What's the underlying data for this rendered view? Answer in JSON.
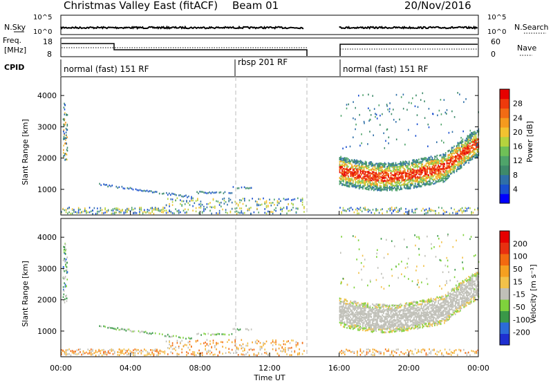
{
  "header": {
    "station": "Christmas Valley East (fitACF)",
    "beam": "Beam 01",
    "date": "20/Nov/2016"
  },
  "left_labels": {
    "nsky": "N.Sky",
    "freq": "Freq.",
    "mhz": "[MHz]",
    "cpid": "CPID"
  },
  "right_labels": {
    "nsearch": "N.Search",
    "nave": "Nave"
  },
  "cpid_modes": [
    {
      "label": "normal (fast) 151 RF",
      "start_hour": 0
    },
    {
      "label": "rbsp 201 RF",
      "start_hour": 10
    },
    {
      "label": "normal (fast) 151 RF",
      "start_hour": 16
    }
  ],
  "noise_ticks": {
    "top": "10^5",
    "bottom": "10^0"
  },
  "freq_ticks": [
    "18",
    "8"
  ],
  "nave_ticks": [
    "60",
    "0"
  ],
  "time_ticks": [
    "00:00",
    "04:00",
    "08:00",
    "12:00",
    "16:00",
    "20:00",
    "00:00"
  ],
  "xlabel": "Time UT",
  "chart_data": [
    {
      "type": "heatmap",
      "name": "power",
      "ylabel": "Slant Range [km]",
      "yticks": [
        "1000",
        "2000",
        "3000",
        "4000"
      ],
      "ylim": [
        180,
        4600
      ],
      "xlim_hours": [
        0,
        24
      ],
      "data_gap_hours": [
        14,
        16
      ],
      "colorbar": {
        "label": "Power [dB]",
        "tick_labels": [
          "4",
          "8",
          "12",
          "16",
          "20",
          "24",
          "28"
        ],
        "colors": [
          "#0000ff",
          "#1a4fd0",
          "#2f6fa8",
          "#3e8a6a",
          "#4fa46a",
          "#6fc057",
          "#b5d33e",
          "#f2c230",
          "#f59a1e",
          "#f26b14",
          "#ee3a0c",
          "#e60000"
        ]
      }
    },
    {
      "type": "heatmap",
      "name": "velocity",
      "ylabel": "Slant Range [km]",
      "yticks": [
        "1000",
        "2000",
        "3000",
        "4000"
      ],
      "ylim": [
        180,
        4600
      ],
      "xlim_hours": [
        0,
        24
      ],
      "data_gap_hours": [
        14,
        16
      ],
      "colorbar": {
        "label": "Velocity [m s⁻¹]",
        "tick_labels": [
          "200",
          "100",
          "50",
          "15",
          "-15",
          "-50",
          "-100",
          "-200"
        ],
        "colors": [
          "#1e2fd0",
          "#2c6bd8",
          "#3a9848",
          "#7fd23c",
          "#c0c0b8",
          "#f2c24a",
          "#f5a020",
          "#f26a10",
          "#e83010",
          "#e60000"
        ]
      }
    }
  ]
}
